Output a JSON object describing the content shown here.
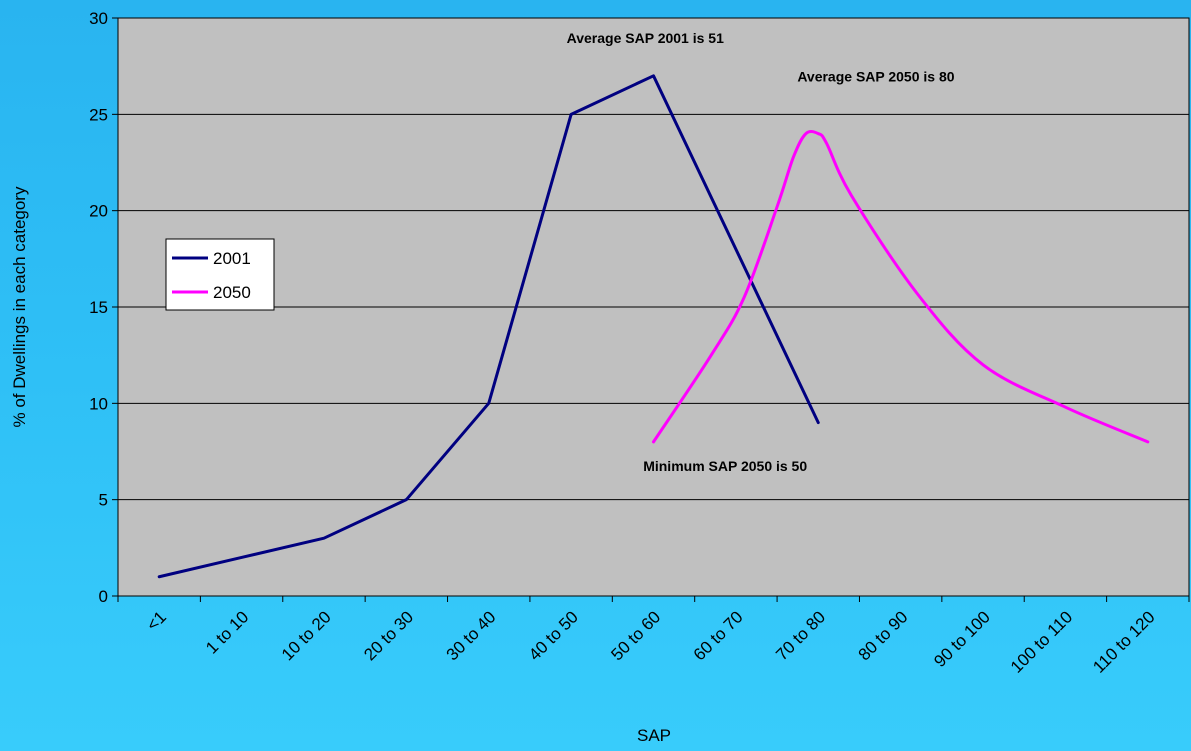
{
  "chart_data": {
    "type": "line",
    "xlabel": "SAP",
    "ylabel": "% of Dwellings in each category",
    "ylim": [
      0,
      30
    ],
    "yticks": [
      0,
      5,
      10,
      15,
      20,
      25,
      30
    ],
    "grid": "horizontal",
    "legend_position": "left",
    "background_color": "#c0c0c0",
    "categories": [
      "<1",
      "1 to 10",
      "10 to 20",
      "20 to 30",
      "30 to 40",
      "40 to 50",
      "50 to 60",
      "60 to 70",
      "70 to 80",
      "80 to 90",
      "90 to 100",
      "100 to 110",
      "110 to 120"
    ],
    "series": [
      {
        "name": "2001",
        "color": "#000080",
        "smooth": false,
        "points": [
          [
            0,
            1
          ],
          [
            1,
            2
          ],
          [
            2,
            3
          ],
          [
            3,
            5
          ],
          [
            4,
            10
          ],
          [
            5,
            25
          ],
          [
            6,
            27
          ],
          [
            8,
            9
          ]
        ]
      },
      {
        "name": "2050",
        "color": "#ff00ff",
        "smooth": true,
        "points": [
          [
            6,
            8
          ],
          [
            6.7,
            12.5
          ],
          [
            7.1,
            15.5
          ],
          [
            7.5,
            20.2
          ],
          [
            7.7,
            22.8
          ],
          [
            7.85,
            24.0
          ],
          [
            8.0,
            24.0
          ],
          [
            8.1,
            23.5
          ],
          [
            8.4,
            20.8
          ],
          [
            9.2,
            15.7
          ],
          [
            10.0,
            12.0
          ],
          [
            11.0,
            9.8
          ],
          [
            12.0,
            8.0
          ]
        ]
      }
    ],
    "annotations": [
      {
        "text": "Average SAP 2001 is 51",
        "x": 5.9,
        "y": 28.7
      },
      {
        "text": "Average SAP 2050 is 80",
        "x": 8.7,
        "y": 26.7
      },
      {
        "text": "Minimum SAP 2050 is 50",
        "x": 6.87,
        "y": 6.5
      }
    ]
  }
}
